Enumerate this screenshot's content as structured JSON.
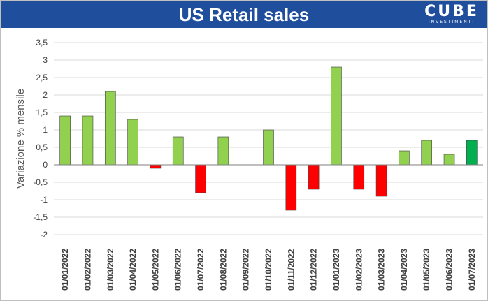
{
  "header": {
    "title": "US Retail sales",
    "logo_main": "CUBE",
    "logo_sub": "INVESTIMENTI"
  },
  "colors": {
    "header_bg": "#1f4e9c",
    "positive": "#92d050",
    "negative": "#ff0000",
    "highlight": "#00b050"
  },
  "chart_data": {
    "type": "bar",
    "title": "US Retail sales",
    "ylabel": "Variazione % mensile",
    "xlabel": "",
    "ylim": [
      -2,
      3.5
    ],
    "yticks": [
      "-2",
      "-1,5",
      "-1",
      "-0,5",
      "0",
      "0,5",
      "1",
      "1,5",
      "2",
      "2,5",
      "3",
      "3,5"
    ],
    "ytick_values": [
      -2,
      -1.5,
      -1,
      -0.5,
      0,
      0.5,
      1,
      1.5,
      2,
      2.5,
      3,
      3.5
    ],
    "grid": true,
    "categories": [
      "01/01/2022",
      "01/02/2022",
      "01/03/2022",
      "01/04/2022",
      "01/05/2022",
      "01/06/2022",
      "01/07/2022",
      "01/08/2022",
      "01/09/2022",
      "01/10/2022",
      "01/11/2022",
      "01/12/2022",
      "01/01/2023",
      "01/02/2023",
      "01/03/2023",
      "01/04/2023",
      "01/05/2023",
      "01/06/2023",
      "01/07/2023"
    ],
    "values": [
      1.4,
      1.4,
      2.1,
      1.3,
      -0.1,
      0.8,
      -0.8,
      0.8,
      0,
      1.0,
      -1.3,
      -0.7,
      2.8,
      -0.7,
      -0.9,
      0.4,
      0.7,
      0.3,
      0.7
    ]
  }
}
